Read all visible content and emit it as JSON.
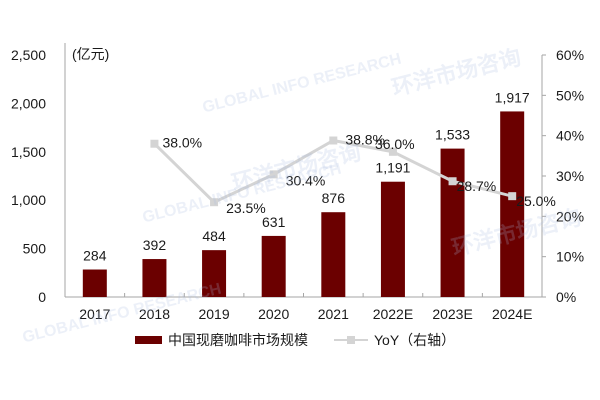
{
  "chart_data": {
    "type": "bar+line",
    "title": "",
    "categories": [
      "2017",
      "2018",
      "2019",
      "2020",
      "2021",
      "2022E",
      "2023E",
      "2024E"
    ],
    "series": [
      {
        "name": "中国现磨咖啡市场规模",
        "type": "bar",
        "axis": "left",
        "color": "#6b0000",
        "values": [
          284,
          392,
          484,
          631,
          876,
          1191,
          1533,
          1917
        ],
        "labels": [
          "284",
          "392",
          "484",
          "631",
          "876",
          "1,191",
          "1,533",
          "1,917"
        ]
      },
      {
        "name": "YoY（右轴）",
        "type": "line",
        "axis": "right",
        "color": "#d4d4d4",
        "values": [
          null,
          38.0,
          23.5,
          30.4,
          38.8,
          36.0,
          28.7,
          25.0
        ],
        "labels": [
          null,
          "38.0%",
          "23.5%",
          "30.4%",
          "38.8%",
          "36.0%",
          "28.7%",
          "25.0%"
        ]
      }
    ],
    "left_axis": {
      "unit_label": "(亿元)",
      "ylim": [
        0,
        2500
      ],
      "ticks": [
        "0",
        "500",
        "1,000",
        "1,500",
        "2,000",
        "2,500"
      ]
    },
    "right_axis": {
      "ylim": [
        0,
        60
      ],
      "ticks": [
        "0%",
        "10%",
        "20%",
        "30%",
        "40%",
        "50%",
        "60%"
      ]
    },
    "grid": false,
    "legend_position": "bottom"
  },
  "legend": {
    "bar_label": "中国现磨咖啡市场规模",
    "line_label": "YoY（右轴）"
  },
  "watermark": {
    "text_en": "GLOBAL INFO RESEARCH",
    "text_cn": "环洋市场咨询"
  }
}
